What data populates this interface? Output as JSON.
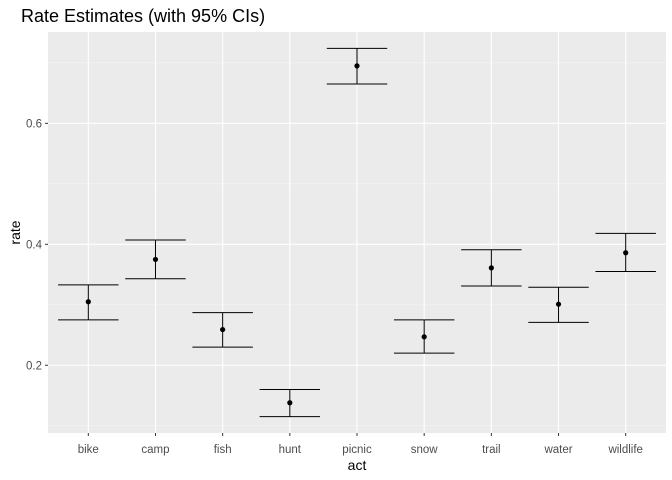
{
  "chart_data": {
    "type": "scatter",
    "title": "Rate Estimates (with 95% CIs)",
    "xlabel": "act",
    "ylabel": "rate",
    "categories": [
      "bike",
      "camp",
      "fish",
      "hunt",
      "picnic",
      "snow",
      "trail",
      "water",
      "wildlife"
    ],
    "series": [
      {
        "estimate": [
          0.305,
          0.375,
          0.259,
          0.138,
          0.695,
          0.247,
          0.361,
          0.301,
          0.386
        ],
        "lower": [
          0.275,
          0.343,
          0.23,
          0.115,
          0.665,
          0.22,
          0.331,
          0.271,
          0.355
        ],
        "upper": [
          0.333,
          0.407,
          0.287,
          0.16,
          0.724,
          0.275,
          0.391,
          0.329,
          0.418
        ]
      }
    ],
    "yticks": [
      0.2,
      0.4,
      0.6
    ],
    "ytick_labels": [
      "0.2",
      "0.4",
      "0.6"
    ],
    "ylim": [
      0.088,
      0.751
    ],
    "grid": true,
    "colors": {
      "panel": "#ebebeb",
      "grid_major": "#ffffff",
      "grid_minor": "#f5f5f5",
      "mark": "#000000"
    }
  }
}
